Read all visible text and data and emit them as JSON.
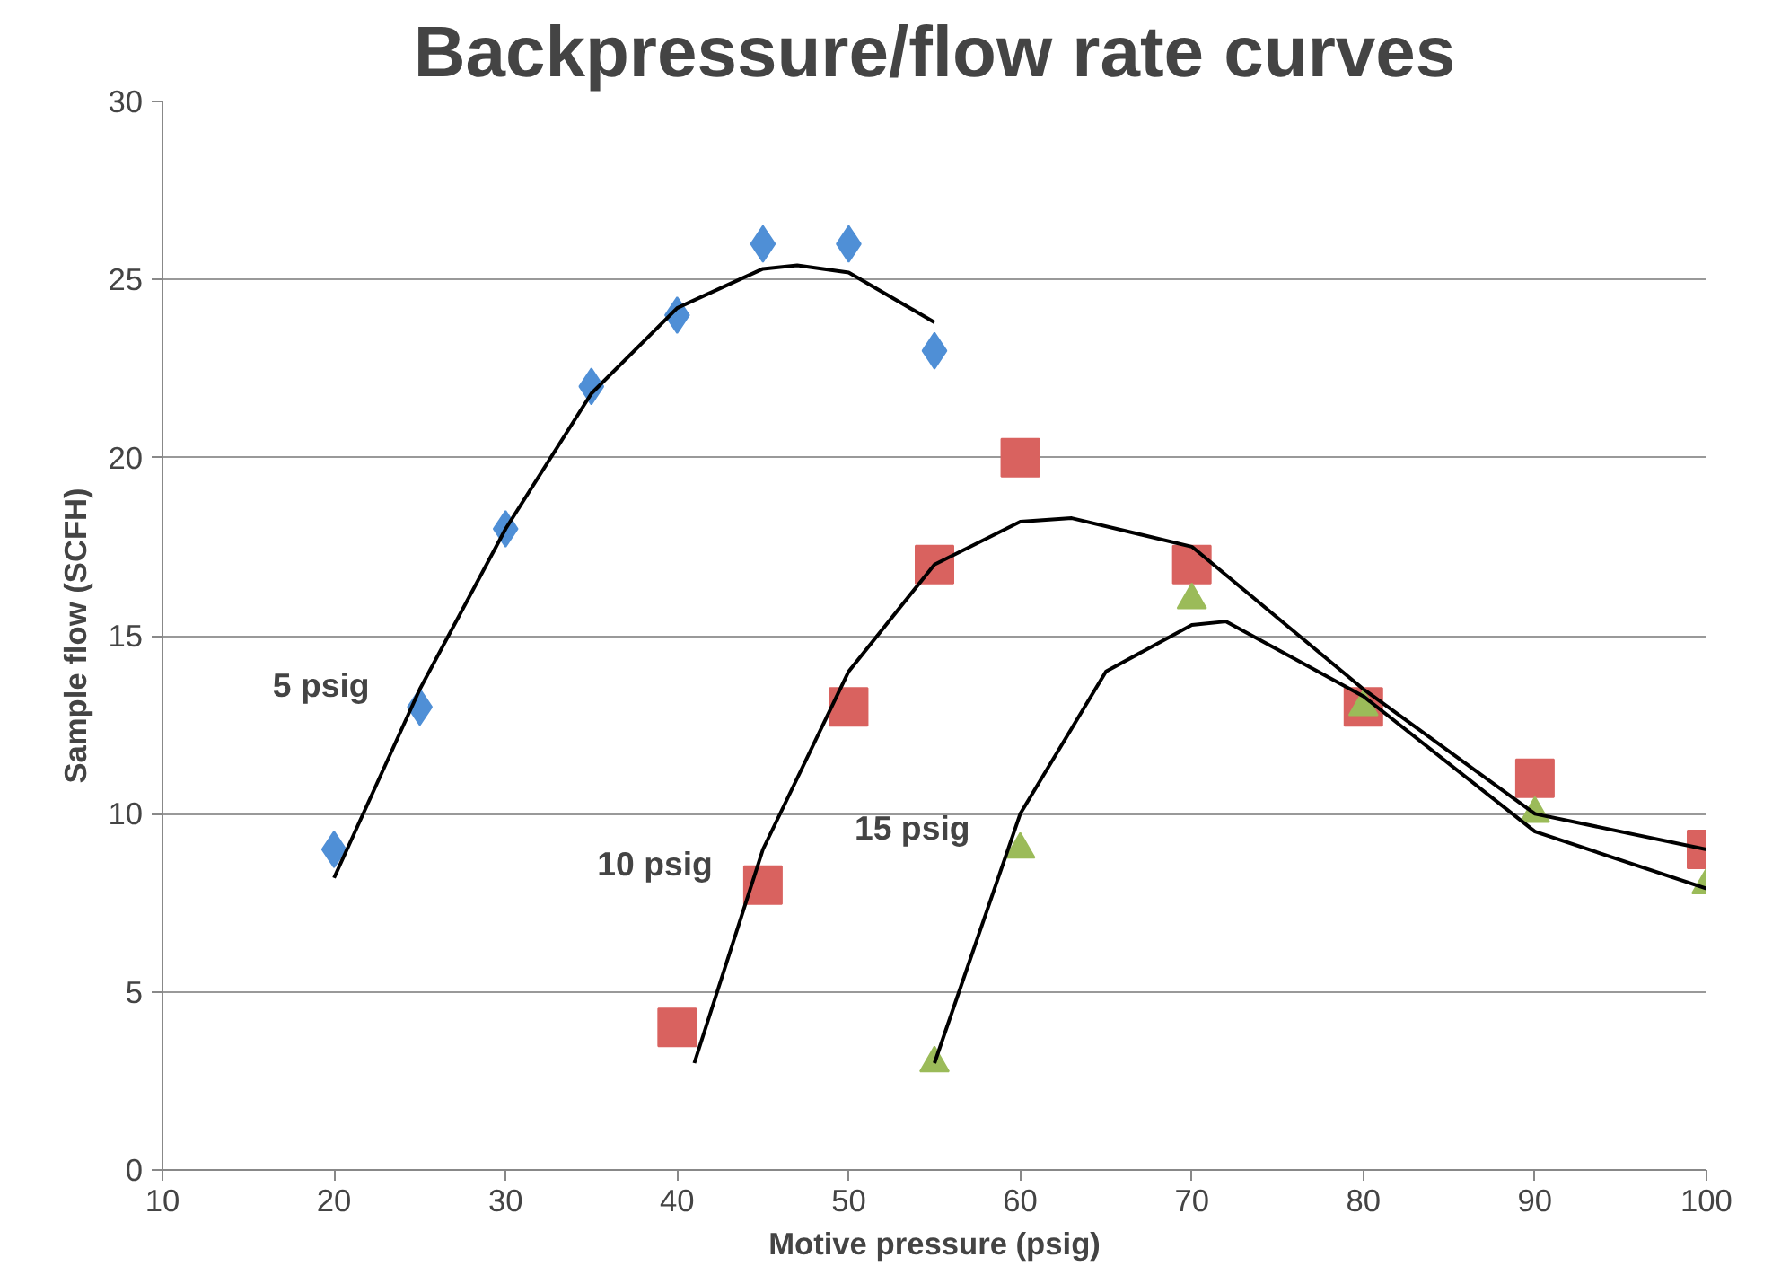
{
  "chart_data": {
    "type": "scatter",
    "title": "Backpressure/flow rate curves",
    "xlabel": "Motive pressure (psig)",
    "ylabel": "Sample flow (SCFH)",
    "xlim": [
      10,
      100
    ],
    "xticks": [
      10,
      20,
      30,
      40,
      50,
      60,
      70,
      80,
      90,
      100
    ],
    "ylim": [
      0,
      30
    ],
    "yticks": [
      0,
      5,
      10,
      15,
      20,
      25,
      30
    ],
    "grid": "y",
    "legend": false,
    "series": [
      {
        "name": "5 psig",
        "marker": "diamond",
        "color": "#4f8fd6",
        "x": [
          20,
          25,
          30,
          35,
          40,
          45,
          50,
          55
        ],
        "values": [
          9,
          13,
          18,
          22,
          24,
          26,
          26,
          23
        ]
      },
      {
        "name": "10 psig",
        "marker": "square",
        "color": "#d9625f",
        "x": [
          40,
          45,
          50,
          55,
          60,
          70,
          80,
          90,
          100
        ],
        "values": [
          4,
          8,
          13,
          17,
          20,
          17,
          13,
          11,
          9
        ]
      },
      {
        "name": "15 psig",
        "marker": "triangle",
        "color": "#9bbb59",
        "x": [
          55,
          60,
          70,
          80,
          90,
          100
        ],
        "values": [
          3,
          9,
          16,
          13,
          10,
          8
        ]
      },
      {
        "type": "line",
        "color": "#000000",
        "x": [
          20,
          25,
          30,
          35,
          40,
          45,
          47,
          50,
          55
        ],
        "values": [
          8.2,
          13.5,
          18,
          21.8,
          24.2,
          25.3,
          25.4,
          25.2,
          23.8
        ]
      },
      {
        "type": "line",
        "color": "#000000",
        "x": [
          41,
          45,
          50,
          55,
          60,
          63,
          70,
          80,
          90,
          100
        ],
        "values": [
          3,
          9,
          14,
          17,
          18.2,
          18.3,
          17.5,
          13.5,
          10,
          9
        ]
      },
      {
        "type": "line",
        "color": "#000000",
        "x": [
          55,
          60,
          65,
          70,
          72,
          80,
          90,
          100
        ],
        "values": [
          3,
          10,
          14,
          15.3,
          15.4,
          13.3,
          9.5,
          7.9
        ]
      }
    ]
  }
}
